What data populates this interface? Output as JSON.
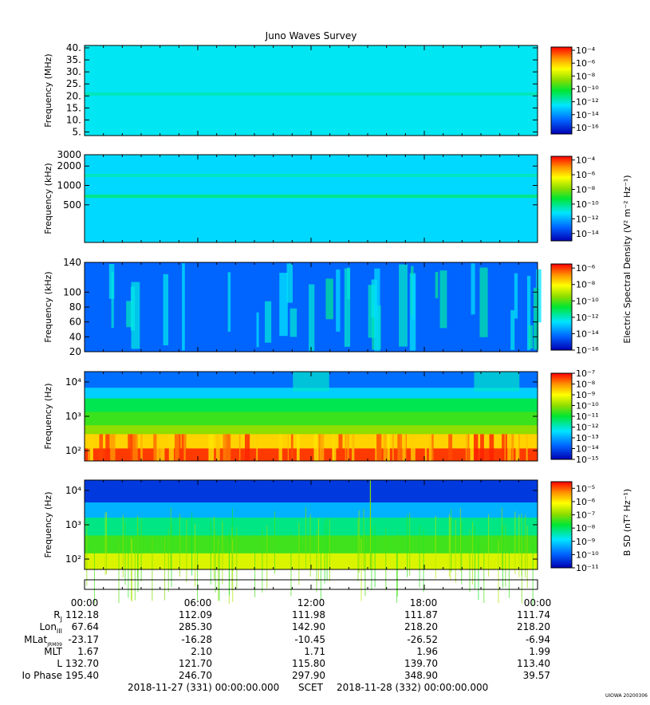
{
  "title": "Juno Waves Survey",
  "colorbar_side_labels": {
    "electric": "Electric Spectral Density (V² m⁻² Hz⁻¹)",
    "magnetic": "B SD (nT² Hz⁻¹)"
  },
  "chart_data": [
    {
      "type": "heatmap",
      "ylabel": "Frequency (MHz)",
      "yscale": "linear",
      "ylim": [
        3.5,
        41
      ],
      "yticks": [
        {
          "v": 5,
          "l": "5."
        },
        {
          "v": 10,
          "l": "10."
        },
        {
          "v": 15,
          "l": "15."
        },
        {
          "v": 20,
          "l": "20."
        },
        {
          "v": 25,
          "l": "25."
        },
        {
          "v": 30,
          "l": "30."
        },
        {
          "v": 35,
          "l": "35."
        },
        {
          "v": 40,
          "l": "40."
        }
      ],
      "colorbar": {
        "vmin_exp": -17,
        "vmax_exp": -3.5,
        "ticks_exp": [
          -4,
          -6,
          -8,
          -10,
          -12,
          -14,
          -16
        ]
      },
      "features": {
        "background_level_exp": -12.4,
        "bands": [
          {
            "center": 20.8,
            "width": 1.4,
            "level_exp": -11.8
          }
        ]
      },
      "spectral_texture": "none"
    },
    {
      "type": "heatmap",
      "ylabel": "Frequency (kHz)",
      "yscale": "log",
      "ylim": [
        130,
        3000
      ],
      "yticks": [
        {
          "v": 500,
          "l": "500"
        },
        {
          "v": 1000,
          "l": "1000"
        },
        {
          "v": 2000,
          "l": "2000"
        },
        {
          "v": 3000,
          "l": "3000"
        }
      ],
      "colorbar": {
        "vmin_exp": -15,
        "vmax_exp": -3.5,
        "ticks_exp": [
          -4,
          -6,
          -8,
          -10,
          -12,
          -14
        ]
      },
      "features": {
        "background_level_exp": -11.4,
        "bands": [
          {
            "center": 1430,
            "width": 160,
            "level_exp": -10.6
          },
          {
            "center": 680,
            "width": 80,
            "level_exp": -10.1
          }
        ]
      },
      "spectral_texture": "none"
    },
    {
      "type": "heatmap",
      "ylabel": "Frequency (kHz)",
      "yscale": "linear",
      "ylim": [
        20,
        140
      ],
      "yticks": [
        {
          "v": 20,
          "l": "20"
        },
        {
          "v": 40,
          "l": "40"
        },
        {
          "v": 60,
          "l": "60"
        },
        {
          "v": 80,
          "l": "80"
        },
        {
          "v": 100,
          "l": "100"
        },
        {
          "v": 140,
          "l": "140"
        }
      ],
      "colorbar": {
        "vmin_exp": -16,
        "vmax_exp": -5.5,
        "ticks_exp": [
          -6,
          -8,
          -10,
          -12,
          -14,
          -16
        ]
      },
      "features": {
        "background_level_exp": -14.3,
        "bands": []
      },
      "spectral_texture": "bursts"
    },
    {
      "type": "heatmap",
      "ylabel": "Frequency (Hz)",
      "yscale": "log",
      "ylim": [
        50,
        20000
      ],
      "yticks": [
        {
          "v": 100,
          "l": "10²"
        },
        {
          "v": 1000,
          "l": "10³"
        },
        {
          "v": 10000,
          "l": "10⁴"
        }
      ],
      "colorbar": {
        "vmin_exp": -15,
        "vmax_exp": -7,
        "ticks_exp": [
          -7,
          -8,
          -9,
          -10,
          -11,
          -12,
          -13,
          -14,
          -15
        ]
      },
      "features": {
        "background_level_exp": -13,
        "bands": []
      },
      "spectral_texture": "layered_high"
    },
    {
      "type": "heatmap",
      "ylabel": "Frequency (Hz)",
      "yscale": "log",
      "ylim": [
        50,
        20000
      ],
      "yticks": [
        {
          "v": 100,
          "l": "10²"
        },
        {
          "v": 1000,
          "l": "10³"
        },
        {
          "v": 10000,
          "l": "10⁴"
        }
      ],
      "colorbar": {
        "vmin_exp": -11,
        "vmax_exp": -4.5,
        "ticks_exp": [
          -5,
          -6,
          -7,
          -8,
          -9,
          -10,
          -11
        ]
      },
      "features": {
        "background_level_exp": -9.5,
        "bands": []
      },
      "spectral_texture": "layered_low"
    }
  ],
  "time_axis": {
    "ticks": [
      "00:00",
      "06:00",
      "12:00",
      "18:00",
      "00:00"
    ]
  },
  "ephemeris": [
    {
      "label": "R_J",
      "values": [
        "112.18",
        "112.09",
        "111.98",
        "111.87",
        "111.74"
      ]
    },
    {
      "label": "Lon_III",
      "values": [
        "67.64",
        "285.30",
        "142.90",
        "218.20",
        "218.20"
      ]
    },
    {
      "label": "MLat_JRM09",
      "values": [
        "-23.17",
        "-16.28",
        "-10.45",
        "-26.52",
        "-6.94"
      ]
    },
    {
      "label": "MLT",
      "values": [
        "1.67",
        "2.10",
        "1.71",
        "1.96",
        "1.99"
      ]
    },
    {
      "label": "L",
      "values": [
        "132.70",
        "121.70",
        "115.80",
        "139.70",
        "113.40"
      ]
    },
    {
      "label": "Io Phase",
      "values": [
        "195.40",
        "246.70",
        "297.90",
        "348.90",
        "39.57"
      ]
    }
  ],
  "ephem_labels": {
    "rj_main": "R",
    "rj_sub": "J",
    "lon_main": "Lon",
    "lon_sub": "III",
    "mlat_main": "MLat",
    "mlat_sub": "JRM09",
    "mlt": "MLT",
    "l": "L",
    "io": "Io Phase"
  },
  "footer": {
    "start": "2018-11-27 (331) 00:00:00.000",
    "scet": "SCET",
    "end": "2018-11-28 (332) 00:00:00.000"
  },
  "stamp": "UIOWA 20200306"
}
